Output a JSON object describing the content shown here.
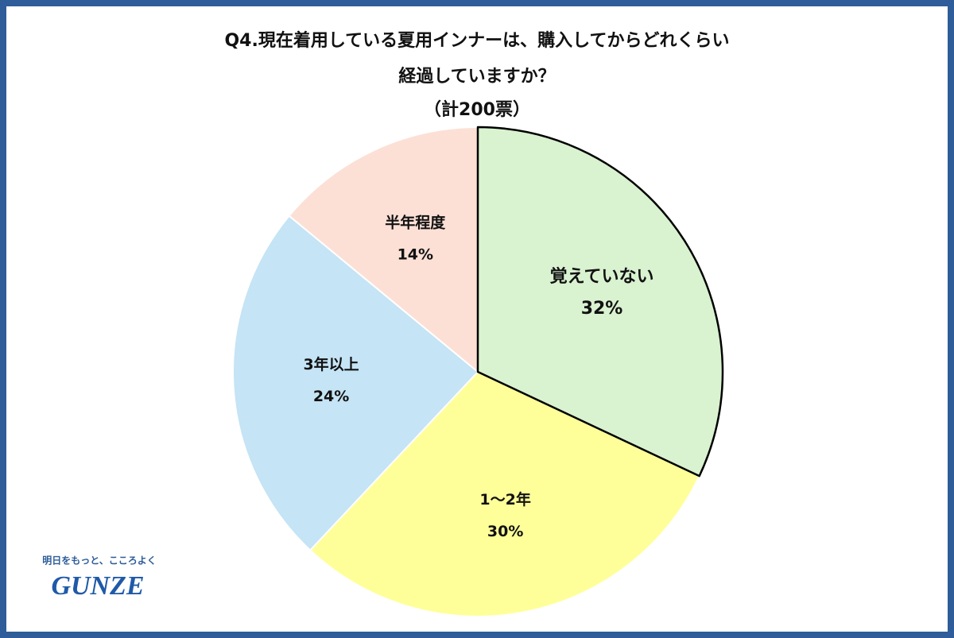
{
  "chart_data": {
    "type": "pie",
    "title": [
      "Q4.現在着用している夏用インナーは、購入してからどれくらい",
      "経過していますか？"
    ],
    "subtitle": "（計200票）",
    "categories": [
      "覚えていない",
      "1〜2年",
      "3年以上",
      "半年程度"
    ],
    "values": [
      32,
      30,
      24,
      14
    ],
    "value_labels": [
      "32%",
      "30%",
      "24%",
      "14%"
    ],
    "colors": [
      "#d9f2d0",
      "#ffff99",
      "#c5e4f5",
      "#fce0d6"
    ]
  },
  "logo": {
    "tagline": "明日をもっと、こころよく",
    "brand": "GUNZE"
  }
}
